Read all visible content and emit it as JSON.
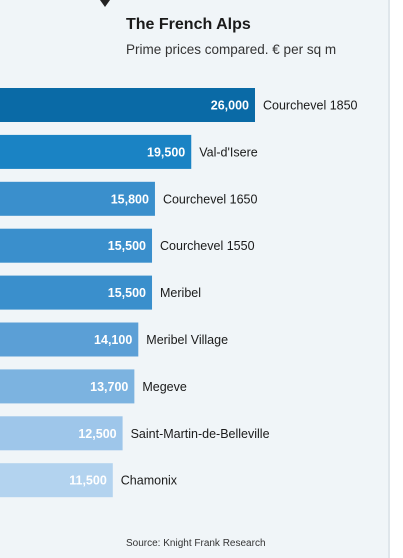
{
  "header": {
    "title": "The French Alps",
    "subtitle": "Prime prices compared. € per sq m"
  },
  "footer": {
    "source": "Source: Knight Frank Research"
  },
  "chart_data": {
    "type": "bar",
    "orientation": "horizontal",
    "title": "The French Alps",
    "subtitle": "Prime prices compared. € per sq m",
    "categories": [
      "Courchevel 1850",
      "Val-d'Isere",
      "Courchevel 1650",
      "Courchevel 1550",
      "Meribel",
      "Meribel Village",
      "Megeve",
      "Saint-Martin-de-Belleville",
      "Chamonix"
    ],
    "values": [
      26000,
      19500,
      15800,
      15500,
      15500,
      14100,
      13700,
      12500,
      11500
    ],
    "value_labels": [
      "26,000",
      "19,500",
      "15,800",
      "15,500",
      "15,500",
      "14,100",
      "13,700",
      "12,500",
      "11,500"
    ],
    "colors": [
      "#0a6aa6",
      "#1a83c4",
      "#3a8fcc",
      "#3a8fcc",
      "#3a8fcc",
      "#5b9fd6",
      "#7cb3e0",
      "#9ec6ea",
      "#b3d3ef"
    ],
    "grid": false,
    "legend": "none",
    "source": "Source: Knight Frank Research"
  }
}
